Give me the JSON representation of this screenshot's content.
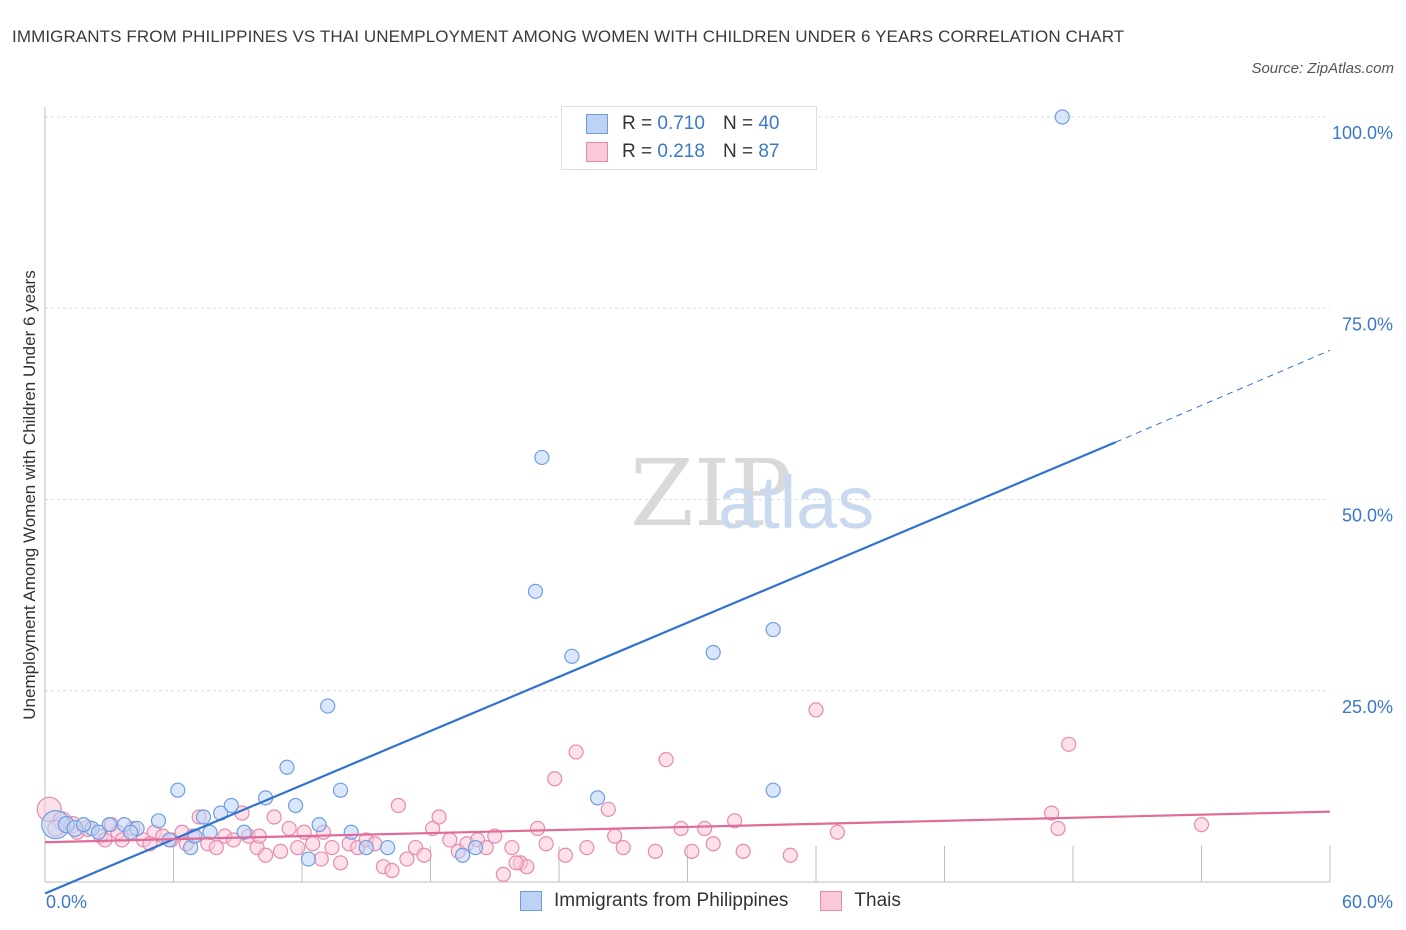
{
  "title": "IMMIGRANTS FROM PHILIPPINES VS THAI UNEMPLOYMENT AMONG WOMEN WITH CHILDREN UNDER 6 YEARS CORRELATION CHART",
  "source": "Source: ZipAtlas.com",
  "watermark": {
    "zip": "ZIP",
    "atlas": "atlas"
  },
  "legend": {
    "r_label": "R =",
    "n_label": "N =",
    "rows": [
      {
        "name": "Immigrants from Philippines",
        "r": "0.710",
        "n": "40"
      },
      {
        "name": "Thais",
        "r": "0.218",
        "n": "87"
      }
    ]
  },
  "chart_data": {
    "type": "scatter",
    "title": "IMMIGRANTS FROM PHILIPPINES VS THAI UNEMPLOYMENT AMONG WOMEN WITH CHILDREN UNDER 6 YEARS CORRELATION CHART",
    "xlabel": "",
    "ylabel": "Unemployment Among Women with Children Under 6 years",
    "xlim": [
      0,
      60
    ],
    "ylim": [
      0,
      100
    ],
    "x_tick_labels": [
      "0.0%",
      "60.0%"
    ],
    "y_tick_labels": [
      "25.0%",
      "50.0%",
      "75.0%",
      "100.0%"
    ],
    "y_ticks": [
      25,
      50,
      75,
      100
    ],
    "grid": true,
    "legend_position": "top-center",
    "colors": {
      "philippines": "#3b78d8",
      "thais": "#e06b98"
    },
    "series": [
      {
        "name": "Immigrants from Philippines",
        "r": 0.71,
        "n": 40,
        "trend": {
          "x0": 0,
          "y0": -1.5,
          "x1": 50,
          "y1": 57.5,
          "dash_to_x": 60,
          "dash_to_y": 69.5
        },
        "points": [
          [
            0.5,
            7.5,
            14
          ],
          [
            1.0,
            7.5,
            8
          ],
          [
            1.4,
            7.0,
            8
          ],
          [
            2.2,
            7.0,
            7
          ],
          [
            3.0,
            7.5,
            7
          ],
          [
            2.5,
            6.5,
            7
          ],
          [
            3.7,
            7.5,
            7
          ],
          [
            4.3,
            7.0,
            7
          ],
          [
            5.3,
            8.0,
            7
          ],
          [
            5.8,
            5.5,
            7
          ],
          [
            6.2,
            12.0,
            7
          ],
          [
            6.8,
            4.5,
            7
          ],
          [
            7.4,
            8.5,
            7
          ],
          [
            7.7,
            6.5,
            7
          ],
          [
            8.2,
            9.0,
            7
          ],
          [
            8.7,
            10.0,
            7
          ],
          [
            9.3,
            6.5,
            7
          ],
          [
            10.3,
            11.0,
            7
          ],
          [
            11.3,
            15.0,
            7
          ],
          [
            11.7,
            10.0,
            7
          ],
          [
            12.3,
            3.0,
            7
          ],
          [
            12.8,
            7.5,
            7
          ],
          [
            13.2,
            23.0,
            7
          ],
          [
            13.8,
            12.0,
            7
          ],
          [
            14.3,
            6.5,
            7
          ],
          [
            15.0,
            4.5,
            7
          ],
          [
            16.0,
            4.5,
            7
          ],
          [
            19.5,
            3.5,
            7
          ],
          [
            20.1,
            4.5,
            7
          ],
          [
            22.9,
            38.0,
            7
          ],
          [
            23.2,
            55.5,
            7
          ],
          [
            24.6,
            29.5,
            7
          ],
          [
            25.8,
            11.0,
            7
          ],
          [
            31.2,
            30.0,
            7
          ],
          [
            34.0,
            33.0,
            7
          ],
          [
            34.0,
            12.0,
            7
          ],
          [
            47.5,
            100.0,
            7
          ],
          [
            1.8,
            7.5,
            7
          ],
          [
            4.0,
            6.5,
            7
          ],
          [
            7.0,
            6.0,
            7
          ]
        ]
      },
      {
        "name": "Thais",
        "r": 0.218,
        "n": 87,
        "trend": {
          "x0": 0,
          "y0": 5.2,
          "x1": 60,
          "y1": 9.2
        },
        "points": [
          [
            0.2,
            9.5,
            12
          ],
          [
            0.8,
            8.0,
            9
          ],
          [
            1.3,
            7.5,
            8
          ],
          [
            2.0,
            7.0,
            8
          ],
          [
            2.6,
            6.0,
            7
          ],
          [
            3.1,
            7.5,
            7
          ],
          [
            3.4,
            6.5,
            7
          ],
          [
            3.6,
            5.5,
            7
          ],
          [
            4.1,
            7.0,
            7
          ],
          [
            4.6,
            5.5,
            7
          ],
          [
            5.1,
            6.5,
            7
          ],
          [
            5.5,
            6.0,
            7
          ],
          [
            5.9,
            5.5,
            7
          ],
          [
            6.4,
            6.5,
            7
          ],
          [
            6.9,
            6.0,
            7
          ],
          [
            7.2,
            8.5,
            7
          ],
          [
            7.6,
            5.0,
            7
          ],
          [
            8.0,
            4.5,
            7
          ],
          [
            8.4,
            6.0,
            7
          ],
          [
            8.8,
            5.5,
            7
          ],
          [
            9.2,
            9.0,
            7
          ],
          [
            9.5,
            6.0,
            7
          ],
          [
            9.9,
            4.5,
            7
          ],
          [
            10.3,
            3.5,
            7
          ],
          [
            10.7,
            8.5,
            7
          ],
          [
            11.0,
            4.0,
            7
          ],
          [
            11.4,
            7.0,
            7
          ],
          [
            11.8,
            4.5,
            7
          ],
          [
            12.1,
            6.5,
            7
          ],
          [
            12.5,
            5.0,
            7
          ],
          [
            13.0,
            6.5,
            7
          ],
          [
            13.4,
            4.5,
            7
          ],
          [
            13.8,
            2.5,
            7
          ],
          [
            14.2,
            5.0,
            7
          ],
          [
            14.6,
            4.5,
            7
          ],
          [
            15.0,
            5.5,
            7
          ],
          [
            15.4,
            5.0,
            7
          ],
          [
            15.8,
            2.0,
            7
          ],
          [
            16.2,
            1.5,
            7
          ],
          [
            16.5,
            10.0,
            7
          ],
          [
            16.9,
            3.0,
            7
          ],
          [
            17.3,
            4.5,
            7
          ],
          [
            17.7,
            3.5,
            7
          ],
          [
            18.1,
            7.0,
            7
          ],
          [
            18.4,
            8.5,
            7
          ],
          [
            18.9,
            5.5,
            7
          ],
          [
            19.3,
            4.0,
            7
          ],
          [
            19.7,
            5.0,
            7
          ],
          [
            20.2,
            5.5,
            7
          ],
          [
            20.6,
            4.5,
            7
          ],
          [
            21.0,
            6.0,
            7
          ],
          [
            21.4,
            1.0,
            7
          ],
          [
            21.8,
            4.5,
            7
          ],
          [
            22.2,
            2.5,
            7
          ],
          [
            22.5,
            2.0,
            7
          ],
          [
            23.0,
            7.0,
            7
          ],
          [
            23.4,
            5.0,
            7
          ],
          [
            23.8,
            13.5,
            7
          ],
          [
            24.3,
            3.5,
            7
          ],
          [
            24.8,
            17.0,
            7
          ],
          [
            25.3,
            4.5,
            7
          ],
          [
            26.3,
            9.5,
            7
          ],
          [
            26.6,
            6.0,
            7
          ],
          [
            27.0,
            4.5,
            7
          ],
          [
            28.5,
            4.0,
            7
          ],
          [
            29.0,
            16.0,
            7
          ],
          [
            29.7,
            7.0,
            7
          ],
          [
            30.2,
            4.0,
            7
          ],
          [
            30.8,
            7.0,
            7
          ],
          [
            31.2,
            5.0,
            7
          ],
          [
            32.2,
            8.0,
            7
          ],
          [
            32.6,
            4.0,
            7
          ],
          [
            34.8,
            3.5,
            7
          ],
          [
            36.0,
            22.5,
            7
          ],
          [
            37.0,
            6.5,
            7
          ],
          [
            47.0,
            9.0,
            7
          ],
          [
            47.3,
            7.0,
            7
          ],
          [
            47.8,
            18.0,
            7
          ],
          [
            54.0,
            7.5,
            7
          ],
          [
            0.5,
            7.0,
            8
          ],
          [
            1.5,
            6.5,
            7
          ],
          [
            2.8,
            5.5,
            7
          ],
          [
            4.9,
            5.0,
            7
          ],
          [
            6.6,
            5.0,
            7
          ],
          [
            10.0,
            6.0,
            7
          ],
          [
            12.9,
            3.0,
            7
          ],
          [
            22.0,
            2.5,
            7
          ]
        ]
      }
    ]
  }
}
